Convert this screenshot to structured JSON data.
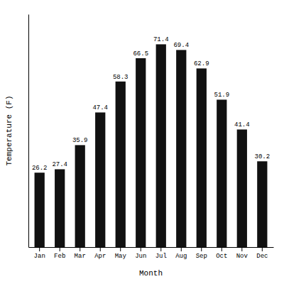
{
  "chart_data": {
    "type": "bar",
    "categories": [
      "Jan",
      "Feb",
      "Mar",
      "Apr",
      "May",
      "Jun",
      "Jul",
      "Aug",
      "Sep",
      "Oct",
      "Nov",
      "Dec"
    ],
    "values": [
      26.2,
      27.4,
      35.9,
      47.4,
      58.3,
      66.5,
      71.4,
      69.4,
      62.9,
      51.9,
      41.4,
      30.2
    ],
    "color": "#111111",
    "xlabel": "Month",
    "ylabel": "Temperature (F)",
    "ylim": [
      0,
      82
    ],
    "data_labels": true,
    "tick_labels": "x"
  }
}
